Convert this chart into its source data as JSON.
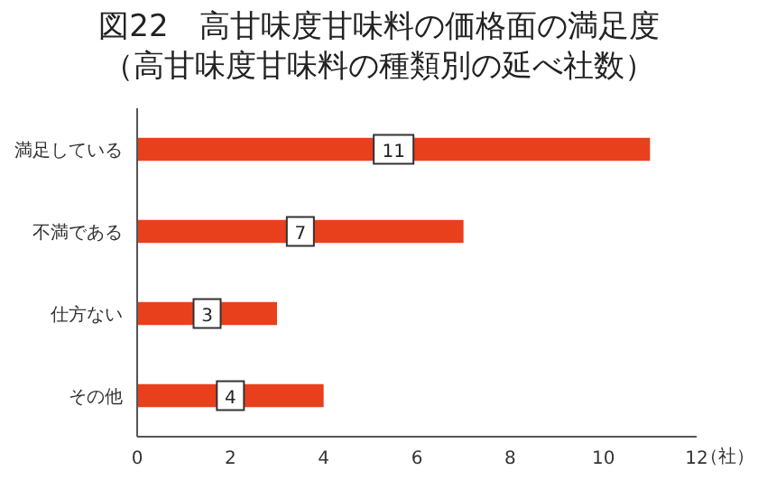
{
  "chart_data": {
    "type": "bar",
    "orientation": "horizontal",
    "title": "図22　高甘味度甘味料の価格面の満足度",
    "subtitle": "（高甘味度甘味料の種類別の延べ社数）",
    "categories": [
      "満足している",
      "不満である",
      "仕方ない",
      "その他"
    ],
    "values": [
      11,
      7,
      3,
      4
    ],
    "color": "#e8401c",
    "xlim": [
      0,
      12
    ],
    "xticks": [
      0,
      2,
      4,
      6,
      8,
      10,
      12
    ],
    "xlabel": "（社）",
    "data_labels": true,
    "grid": false
  }
}
